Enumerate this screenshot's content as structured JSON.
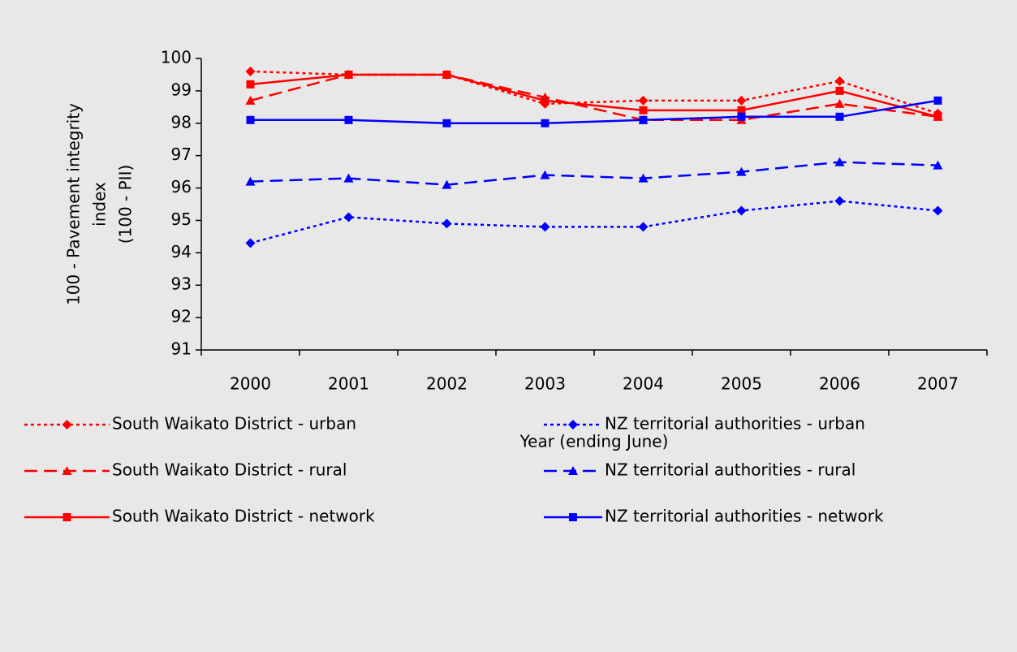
{
  "chart_data": {
    "type": "line",
    "ylabel": [
      "100 - Pavement integrity",
      "index",
      "(100 - PII)"
    ],
    "xlabel": "Year (ending June)",
    "categories": [
      "2000",
      "2001",
      "2002",
      "2003",
      "2004",
      "2005",
      "2006",
      "2007"
    ],
    "ylim": [
      91,
      100
    ],
    "yticks": [
      91,
      92,
      93,
      94,
      95,
      96,
      97,
      98,
      99,
      100
    ],
    "series": [
      {
        "name": "South Waikato District - urban",
        "color": "#ff0000",
        "dash": "dotted",
        "marker": "diamond",
        "values": [
          99.6,
          99.5,
          99.5,
          98.6,
          98.7,
          98.7,
          99.3,
          98.3
        ]
      },
      {
        "name": "South Waikato District - rural",
        "color": "#ff0000",
        "dash": "dashed",
        "marker": "triangle",
        "values": [
          98.7,
          99.5,
          99.5,
          98.8,
          98.1,
          98.1,
          98.6,
          98.2
        ]
      },
      {
        "name": "South Waikato District - network",
        "color": "#ff0000",
        "dash": "solid",
        "marker": "square",
        "values": [
          99.2,
          99.5,
          99.5,
          98.7,
          98.4,
          98.4,
          99.0,
          98.2
        ]
      },
      {
        "name": "NZ territorial authorities - urban",
        "color": "#0000ff",
        "dash": "dotted",
        "marker": "diamond",
        "values": [
          94.3,
          95.1,
          94.9,
          94.8,
          94.8,
          95.3,
          95.6,
          95.3
        ]
      },
      {
        "name": "NZ territorial authorities - rural",
        "color": "#0000ff",
        "dash": "dashed",
        "marker": "triangle",
        "values": [
          96.2,
          96.3,
          96.1,
          96.4,
          96.3,
          96.5,
          96.8,
          96.7
        ]
      },
      {
        "name": "NZ territorial authorities - network",
        "color": "#0000ff",
        "dash": "solid",
        "marker": "square",
        "values": [
          98.1,
          98.1,
          98.0,
          98.0,
          98.1,
          98.2,
          98.2,
          98.7
        ]
      }
    ]
  }
}
